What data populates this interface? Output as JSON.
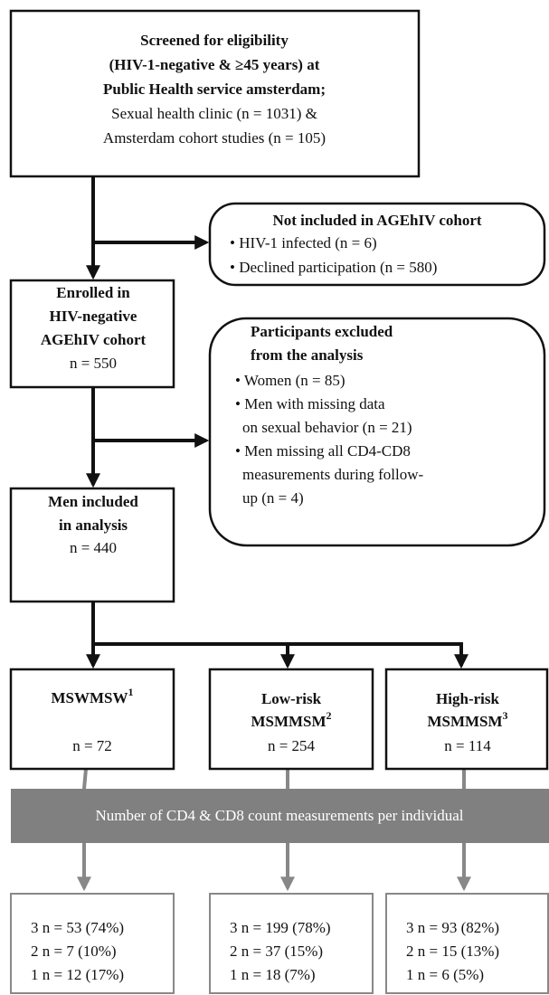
{
  "screening": {
    "bold_lines": [
      "Screened for eligibility",
      "(HIV-1-negative & ≥45 years) at",
      "Public Health service amsterdam;"
    ],
    "lines": [
      "Sexual health clinic (n = 1031) &",
      "Amsterdam cohort studies (n = 105)"
    ]
  },
  "not_included": {
    "title": "Not included in AGEhIV cohort",
    "items": [
      "• HIV-1 infected (n = 6)",
      "• Declined participation (n = 580)"
    ]
  },
  "enrolled": {
    "bold_lines": [
      "Enrolled in",
      "HIV-negative",
      "AGEhIV cohort"
    ],
    "n": "n = 550"
  },
  "excluded": {
    "title_lines": [
      "Participants excluded",
      "from the analysis"
    ],
    "lines": [
      "• Women (n = 85)",
      "• Men with missing data",
      "on sexual behavior (n = 21)",
      "• Men missing all CD4-CD8",
      "measurements during follow-",
      "up (n = 4)"
    ]
  },
  "included": {
    "bold_lines": [
      "Men included",
      "in analysis"
    ],
    "n": "n = 440"
  },
  "groups": [
    {
      "label_lines": [
        "MSW"
      ],
      "sup": "1",
      "n": "n = 72",
      "counts": [
        "3 n = 53 (74%)",
        "2 n = 7 (10%)",
        "1 n = 12 (17%)"
      ]
    },
    {
      "label_lines": [
        "Low-risk",
        "MSM"
      ],
      "sup": "2",
      "n": "n = 254",
      "counts": [
        "3 n = 199 (78%)",
        "2 n = 37 (15%)",
        "1 n = 18 (7%)"
      ]
    },
    {
      "label_lines": [
        "High-risk",
        "MSM"
      ],
      "sup": "3",
      "n": "n = 114",
      "counts": [
        "3 n = 93 (82%)",
        "2 n = 15 (13%)",
        "1 n = 6 (5%)"
      ]
    }
  ],
  "banner": "Number of CD4 & CD8 count measurements per individual"
}
